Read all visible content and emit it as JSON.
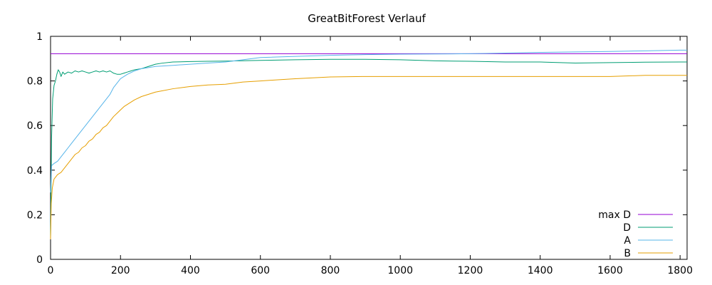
{
  "chart_data": {
    "type": "line",
    "title": "GreatBitForest Verlauf",
    "xlabel": "",
    "ylabel": "",
    "xlim": [
      0,
      1820
    ],
    "ylim": [
      0,
      1
    ],
    "x_ticks": [
      0,
      200,
      400,
      600,
      800,
      1000,
      1200,
      1400,
      1600,
      1800
    ],
    "y_ticks": [
      0,
      0.2,
      0.4,
      0.6,
      0.8,
      1
    ],
    "y_tick_labels": [
      "0",
      "0.2",
      "0.4",
      "0.6",
      "0.8",
      "1"
    ],
    "grid": false,
    "legend_position": "bottom-right",
    "series": [
      {
        "name": "max D",
        "color": "#9400d3",
        "x": [
          0,
          1820
        ],
        "y": [
          0.922,
          0.922
        ]
      },
      {
        "name": "D",
        "color": "#009e73",
        "x": [
          0,
          3,
          6,
          10,
          14,
          18,
          22,
          26,
          30,
          35,
          40,
          50,
          60,
          70,
          80,
          90,
          100,
          110,
          120,
          130,
          140,
          150,
          160,
          170,
          180,
          190,
          200,
          210,
          220,
          230,
          240,
          260,
          280,
          300,
          320,
          350,
          400,
          450,
          500,
          600,
          700,
          800,
          900,
          1000,
          1100,
          1200,
          1300,
          1400,
          1500,
          1600,
          1700,
          1800,
          1820
        ],
        "y": [
          0.1,
          0.55,
          0.72,
          0.78,
          0.8,
          0.83,
          0.85,
          0.84,
          0.82,
          0.84,
          0.83,
          0.84,
          0.835,
          0.845,
          0.84,
          0.845,
          0.84,
          0.835,
          0.84,
          0.845,
          0.84,
          0.845,
          0.84,
          0.845,
          0.835,
          0.83,
          0.83,
          0.835,
          0.84,
          0.845,
          0.85,
          0.855,
          0.865,
          0.875,
          0.88,
          0.885,
          0.887,
          0.888,
          0.889,
          0.892,
          0.895,
          0.897,
          0.897,
          0.895,
          0.89,
          0.888,
          0.885,
          0.885,
          0.88,
          0.882,
          0.884,
          0.885,
          0.885
        ]
      },
      {
        "name": "A",
        "color": "#56b4e9",
        "x": [
          0,
          3,
          10,
          20,
          30,
          40,
          50,
          60,
          70,
          80,
          90,
          100,
          110,
          120,
          130,
          140,
          150,
          160,
          170,
          180,
          190,
          200,
          210,
          220,
          240,
          260,
          280,
          300,
          350,
          400,
          450,
          500,
          550,
          600,
          700,
          800,
          900,
          1000,
          1100,
          1200,
          1300,
          1400,
          1500,
          1600,
          1700,
          1800,
          1820
        ],
        "y": [
          0.3,
          0.42,
          0.43,
          0.44,
          0.46,
          0.48,
          0.5,
          0.52,
          0.54,
          0.56,
          0.58,
          0.6,
          0.62,
          0.64,
          0.66,
          0.68,
          0.7,
          0.72,
          0.74,
          0.77,
          0.79,
          0.81,
          0.82,
          0.83,
          0.845,
          0.855,
          0.86,
          0.865,
          0.87,
          0.875,
          0.88,
          0.885,
          0.895,
          0.905,
          0.91,
          0.915,
          0.918,
          0.92,
          0.921,
          0.922,
          0.925,
          0.928,
          0.93,
          0.932,
          0.935,
          0.938,
          0.938
        ]
      },
      {
        "name": "B",
        "color": "#e69f00",
        "x": [
          0,
          2,
          5,
          10,
          20,
          30,
          40,
          50,
          60,
          70,
          80,
          90,
          100,
          110,
          120,
          130,
          140,
          150,
          160,
          170,
          180,
          190,
          200,
          210,
          220,
          240,
          260,
          280,
          300,
          350,
          400,
          450,
          500,
          550,
          600,
          650,
          700,
          800,
          900,
          1000,
          1100,
          1200,
          1300,
          1400,
          1500,
          1600,
          1700,
          1800,
          1820
        ],
        "y": [
          0.09,
          0.25,
          0.32,
          0.36,
          0.38,
          0.39,
          0.41,
          0.43,
          0.45,
          0.47,
          0.48,
          0.5,
          0.51,
          0.53,
          0.54,
          0.56,
          0.57,
          0.59,
          0.6,
          0.62,
          0.64,
          0.655,
          0.67,
          0.685,
          0.695,
          0.715,
          0.73,
          0.74,
          0.75,
          0.765,
          0.775,
          0.782,
          0.785,
          0.795,
          0.8,
          0.805,
          0.81,
          0.818,
          0.82,
          0.82,
          0.82,
          0.82,
          0.82,
          0.82,
          0.82,
          0.82,
          0.825,
          0.825,
          0.825
        ]
      }
    ]
  }
}
